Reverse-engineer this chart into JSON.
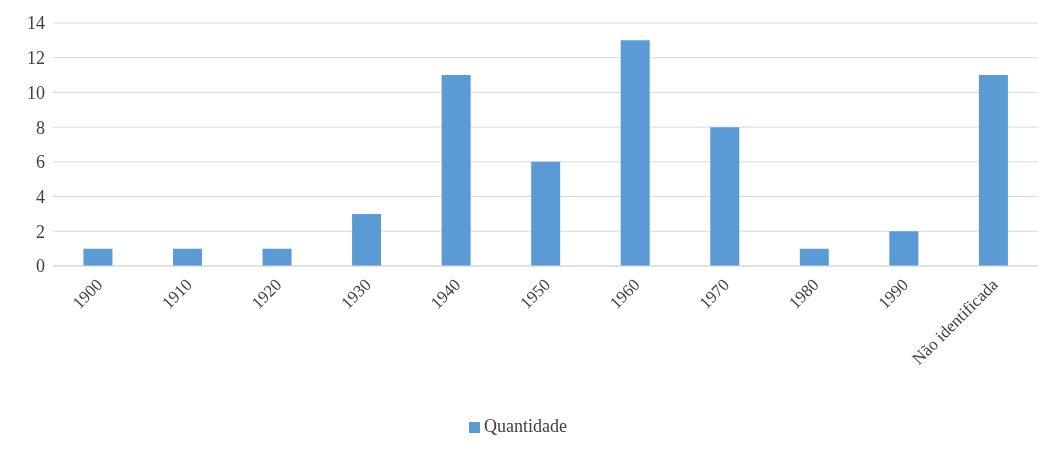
{
  "chart_data": {
    "type": "bar",
    "categories": [
      "1900",
      "1910",
      "1920",
      "1930",
      "1940",
      "1950",
      "1960",
      "1970",
      "1980",
      "1990",
      "Não identificada"
    ],
    "series": [
      {
        "name": "Quantidade",
        "color": "#5b9bd5",
        "values": [
          1,
          1,
          1,
          3,
          11,
          6,
          13,
          8,
          1,
          2,
          11
        ]
      }
    ],
    "ylim": [
      0,
      14
    ],
    "yticks": [
      0,
      2,
      4,
      6,
      8,
      10,
      12,
      14
    ],
    "grid": "y",
    "legend": "bottom"
  }
}
